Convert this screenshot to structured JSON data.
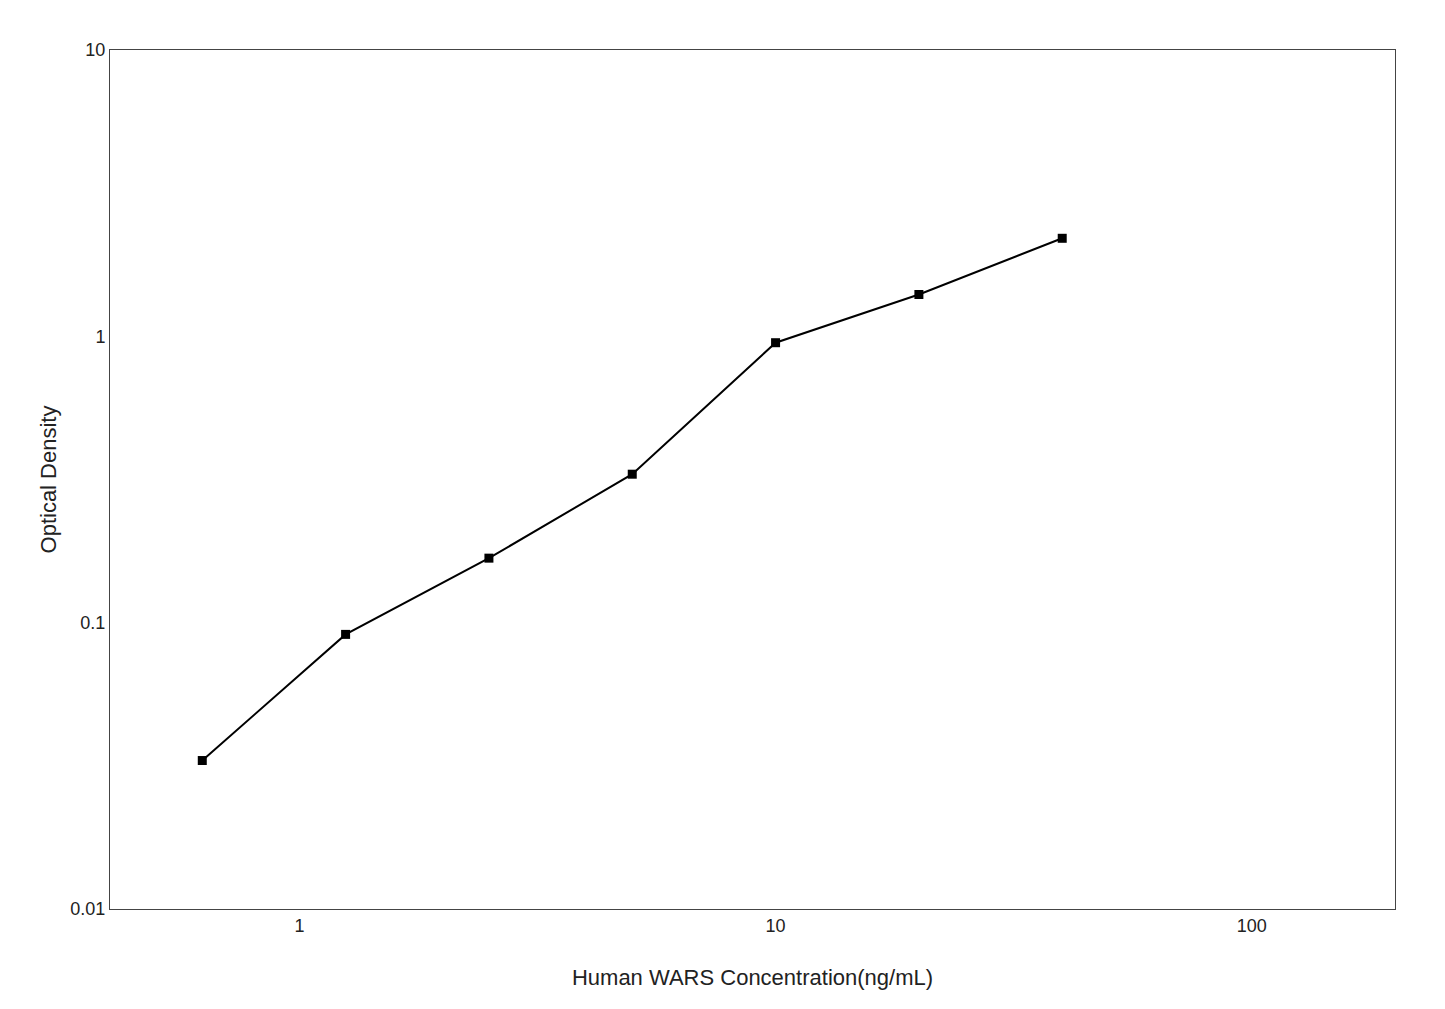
{
  "chart_data": {
    "type": "line",
    "x": [
      0.625,
      1.25,
      2.5,
      5.0,
      10.0,
      20.0,
      40.0
    ],
    "values": [
      0.033,
      0.091,
      0.168,
      0.33,
      0.95,
      1.4,
      2.2
    ],
    "xlabel": "Human WARS Concentration(ng/mL)",
    "ylabel": "Optical Density",
    "xlim": [
      0.4,
      200
    ],
    "ylim": [
      0.01,
      10
    ],
    "xticks": [
      1,
      10,
      100
    ],
    "yticks": [
      0.01,
      0.1,
      1,
      10
    ],
    "log": true,
    "grid": false,
    "color": "#000000",
    "marker": "square",
    "line_style": "solid"
  }
}
